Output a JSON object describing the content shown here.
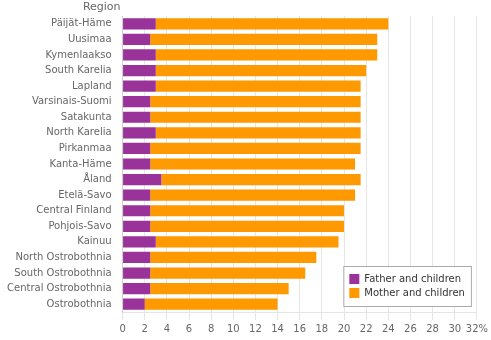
{
  "chart_data": {
    "type": "bar",
    "orientation": "horizontal",
    "stacked": true,
    "ylabel": "Region",
    "categories": [
      "Päijät-Häme",
      "Uusimaa",
      "Kymenlaakso",
      "South Karelia",
      "Lapland",
      "Varsinais-Suomi",
      "Satakunta",
      "North Karelia",
      "Pirkanmaa",
      "Kanta-Häme",
      "Åland",
      "Etelä-Savo",
      "Central Finland",
      "Pohjois-Savo",
      "Kainuu",
      "North Ostrobothnia",
      "South Ostrobothnia",
      "Central Ostrobothnia",
      "Ostrobothnia"
    ],
    "series": [
      {
        "name": "Father and children",
        "color": "#993399",
        "values": [
          3.0,
          2.5,
          3.0,
          3.0,
          3.0,
          2.5,
          2.5,
          3.0,
          2.5,
          2.5,
          3.5,
          2.5,
          2.5,
          2.5,
          3.0,
          2.5,
          2.5,
          2.5,
          2.0
        ]
      },
      {
        "name": "Mother and children",
        "color": "#FF9900",
        "values": [
          21.0,
          20.5,
          20.0,
          19.0,
          18.5,
          19.0,
          19.0,
          18.5,
          19.0,
          18.5,
          18.0,
          18.5,
          17.5,
          17.5,
          16.5,
          15.0,
          14.0,
          12.5,
          12.0
        ]
      }
    ],
    "xlim": [
      0,
      32
    ],
    "xticks": [
      0,
      2,
      4,
      6,
      8,
      10,
      12,
      14,
      16,
      18,
      20,
      22,
      24,
      26,
      28,
      30,
      {
        "value": 32,
        "label": "32%"
      }
    ],
    "grid": true,
    "legend": "lower right"
  }
}
